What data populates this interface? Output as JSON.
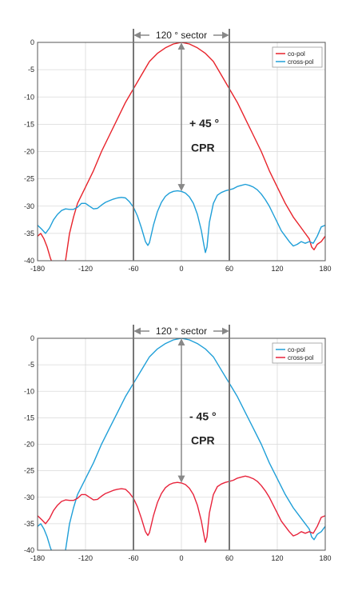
{
  "chart_data": [
    {
      "type": "line",
      "xlim": [
        -180,
        180
      ],
      "ylim": [
        -40,
        0
      ],
      "xticks": [
        -180,
        -120,
        -60,
        0,
        60,
        120,
        180
      ],
      "yticks": [
        0,
        -5,
        -10,
        -15,
        -20,
        -25,
        -30,
        -35,
        -40
      ],
      "xtick_labels": [
        "-180",
        "-120",
        "-60",
        "0",
        "60",
        "120",
        "180"
      ],
      "ytick_labels": [
        "0",
        "-5",
        "-10",
        "-15",
        "-20",
        "-25",
        "-30",
        "-35",
        "-40"
      ],
      "grid": true,
      "legend_position": "top-right",
      "sector_label": "120 °  sector",
      "sector_range": [
        -60,
        60
      ],
      "cpr_line1": "+ 45 °",
      "cpr_line2": "CPR",
      "series": [
        {
          "name": "co-pol",
          "color": "#e8232b",
          "x": [
            -180,
            -176,
            -172,
            -168,
            -164,
            -160,
            -156,
            -150,
            -145,
            -140,
            -135,
            -130,
            -120,
            -110,
            -100,
            -90,
            -80,
            -70,
            -60,
            -50,
            -40,
            -30,
            -20,
            -10,
            0,
            10,
            20,
            30,
            40,
            50,
            60,
            70,
            80,
            90,
            100,
            110,
            120,
            130,
            140,
            150,
            155,
            160,
            163,
            166,
            170,
            175,
            180
          ],
          "y": [
            -35.5,
            -35,
            -36,
            -37.5,
            -39.5,
            -41,
            -43,
            -44,
            -40,
            -35,
            -32,
            -29.5,
            -26.5,
            -23.5,
            -20,
            -17,
            -14,
            -11,
            -8.5,
            -6,
            -3.5,
            -2,
            -1,
            -0.3,
            0,
            -0.3,
            -1,
            -2,
            -3.5,
            -6,
            -8.5,
            -11,
            -14,
            -17,
            -20,
            -23.5,
            -26.5,
            -29.5,
            -32,
            -34,
            -35,
            -36,
            -37.5,
            -38,
            -37,
            -36.5,
            -35.5
          ]
        },
        {
          "name": "cross-pol",
          "color": "#1f9fd8",
          "x": [
            -180,
            -175,
            -170,
            -165,
            -160,
            -155,
            -150,
            -145,
            -140,
            -135,
            -130,
            -125,
            -120,
            -115,
            -110,
            -105,
            -100,
            -95,
            -90,
            -85,
            -80,
            -75,
            -70,
            -65,
            -60,
            -55,
            -50,
            -45,
            -42,
            -40,
            -37,
            -35,
            -30,
            -25,
            -20,
            -15,
            -10,
            -5,
            0,
            5,
            10,
            15,
            20,
            25,
            28,
            30,
            32,
            35,
            40,
            45,
            50,
            55,
            60,
            65,
            70,
            75,
            80,
            85,
            90,
            95,
            100,
            105,
            110,
            115,
            120,
            125,
            130,
            135,
            140,
            145,
            150,
            155,
            160,
            165,
            170,
            175,
            180
          ],
          "y": [
            -33.5,
            -34.2,
            -35,
            -34,
            -32.5,
            -31.5,
            -30.8,
            -30.5,
            -30.6,
            -30.6,
            -30.2,
            -29.5,
            -29.5,
            -30,
            -30.5,
            -30.4,
            -29.8,
            -29.3,
            -29,
            -28.7,
            -28.5,
            -28.4,
            -28.5,
            -29.2,
            -30.2,
            -31.8,
            -34,
            -36.5,
            -37.2,
            -36.7,
            -34.8,
            -33.5,
            -31,
            -29.3,
            -28.2,
            -27.6,
            -27.3,
            -27.2,
            -27.3,
            -27.6,
            -28.3,
            -29.5,
            -31.5,
            -34.5,
            -37,
            -38.5,
            -37.5,
            -33,
            -29.5,
            -28,
            -27.5,
            -27.2,
            -27,
            -26.8,
            -26.4,
            -26.2,
            -26,
            -26.2,
            -26.5,
            -27,
            -27.8,
            -28.8,
            -30,
            -31.5,
            -33,
            -34.5,
            -35.5,
            -36.5,
            -37.3,
            -37,
            -36.5,
            -36.8,
            -36.5,
            -36.8,
            -35.5,
            -33.8,
            -33.5
          ]
        }
      ]
    },
    {
      "type": "line",
      "xlim": [
        -180,
        180
      ],
      "ylim": [
        -40,
        0
      ],
      "xticks": [
        -180,
        -120,
        -60,
        0,
        60,
        120,
        180
      ],
      "yticks": [
        0,
        -5,
        -10,
        -15,
        -20,
        -25,
        -30,
        -35,
        -40
      ],
      "xtick_labels": [
        "-180",
        "-120",
        "-60",
        "0",
        "60",
        "120",
        "180"
      ],
      "ytick_labels": [
        "0",
        "-5",
        "-10",
        "-15",
        "-20",
        "-25",
        "-30",
        "-35",
        "-40"
      ],
      "grid": true,
      "legend_position": "top-right",
      "sector_label": "120 °  sector",
      "sector_range": [
        -60,
        60
      ],
      "cpr_line1": "- 45 °",
      "cpr_line2": "CPR",
      "series": [
        {
          "name": "co-pol",
          "color": "#1f9fd8",
          "x": [
            -180,
            -176,
            -172,
            -168,
            -164,
            -160,
            -156,
            -150,
            -145,
            -140,
            -135,
            -130,
            -120,
            -110,
            -100,
            -90,
            -80,
            -70,
            -60,
            -50,
            -40,
            -30,
            -20,
            -10,
            0,
            10,
            20,
            30,
            40,
            50,
            60,
            70,
            80,
            90,
            100,
            110,
            120,
            130,
            140,
            150,
            155,
            160,
            163,
            166,
            170,
            175,
            180
          ],
          "y": [
            -35.5,
            -35,
            -36,
            -37.5,
            -39.5,
            -41,
            -43,
            -44,
            -40,
            -35,
            -32,
            -29.5,
            -26.5,
            -23.5,
            -20,
            -17,
            -14,
            -11,
            -8.5,
            -6,
            -3.5,
            -2,
            -1,
            -0.3,
            0,
            -0.3,
            -1,
            -2,
            -3.5,
            -6,
            -8.5,
            -11,
            -14,
            -17,
            -20,
            -23.5,
            -26.5,
            -29.5,
            -32,
            -34,
            -35,
            -36,
            -37.5,
            -38,
            -37,
            -36.5,
            -35.5
          ]
        },
        {
          "name": "cross-pol",
          "color": "#e8233b",
          "x": [
            -180,
            -175,
            -170,
            -165,
            -160,
            -155,
            -150,
            -145,
            -140,
            -135,
            -130,
            -125,
            -120,
            -115,
            -110,
            -105,
            -100,
            -95,
            -90,
            -85,
            -80,
            -75,
            -70,
            -65,
            -60,
            -55,
            -50,
            -45,
            -42,
            -40,
            -37,
            -35,
            -30,
            -25,
            -20,
            -15,
            -10,
            -5,
            0,
            5,
            10,
            15,
            20,
            25,
            28,
            30,
            32,
            35,
            40,
            45,
            50,
            55,
            60,
            65,
            70,
            75,
            80,
            85,
            90,
            95,
            100,
            105,
            110,
            115,
            120,
            125,
            130,
            135,
            140,
            145,
            150,
            155,
            160,
            165,
            170,
            175,
            180
          ],
          "y": [
            -33.5,
            -34.2,
            -35,
            -34,
            -32.5,
            -31.5,
            -30.8,
            -30.5,
            -30.6,
            -30.6,
            -30.2,
            -29.5,
            -29.5,
            -30,
            -30.5,
            -30.4,
            -29.8,
            -29.3,
            -29,
            -28.7,
            -28.5,
            -28.4,
            -28.5,
            -29.2,
            -30.2,
            -31.8,
            -34,
            -36.5,
            -37.2,
            -36.7,
            -34.8,
            -33.5,
            -31,
            -29.3,
            -28.2,
            -27.6,
            -27.3,
            -27.2,
            -27.3,
            -27.6,
            -28.3,
            -29.5,
            -31.5,
            -34.5,
            -37,
            -38.5,
            -37.5,
            -33,
            -29.5,
            -28,
            -27.5,
            -27.2,
            -27,
            -26.8,
            -26.4,
            -26.2,
            -26,
            -26.2,
            -26.5,
            -27,
            -27.8,
            -28.8,
            -30,
            -31.5,
            -33,
            -34.5,
            -35.5,
            -36.5,
            -37.3,
            -37,
            -36.5,
            -36.8,
            -36.5,
            -36.8,
            -35.5,
            -33.8,
            -33.5
          ]
        }
      ]
    }
  ]
}
